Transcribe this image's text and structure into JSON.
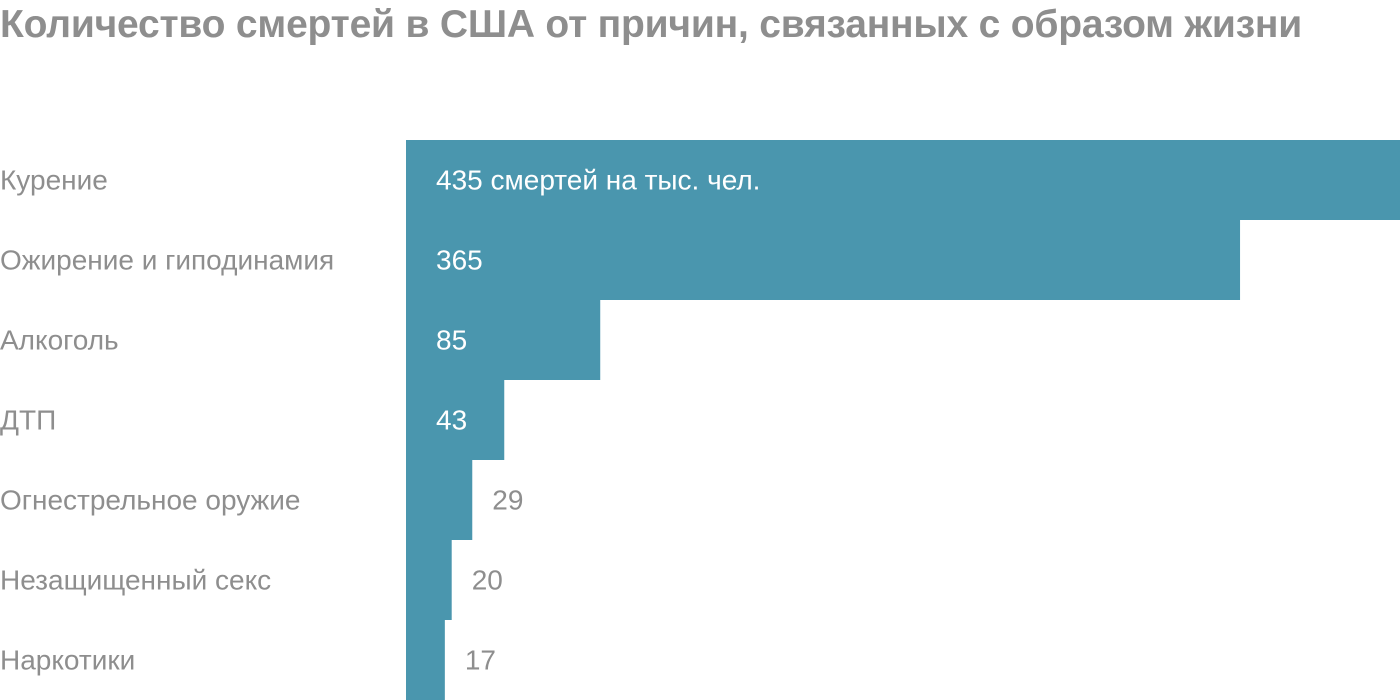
{
  "colors": {
    "bar": "#4a96ae",
    "title": "#8e8e8e",
    "label": "#8e8e8e",
    "value_inside": "#ffffff",
    "value_outside": "#8e8e8e"
  },
  "chart_data": {
    "type": "bar",
    "orientation": "horizontal",
    "title": "Количество смертей в США от причин, связанных с образом жизни",
    "categories": [
      "Курение",
      "Ожирение и гиподинамия",
      "Алкоголь",
      "ДТП",
      "Огнестрельное оружие",
      "Незащищенный секс",
      "Наркотики"
    ],
    "values": [
      435,
      365,
      85,
      43,
      29,
      20,
      17
    ],
    "value_labels": [
      "435 смертей на тыс. чел.",
      "365",
      "85",
      "43",
      "29",
      "20",
      "17"
    ],
    "xlim": [
      0,
      435
    ],
    "grid": false,
    "legend": "none"
  }
}
